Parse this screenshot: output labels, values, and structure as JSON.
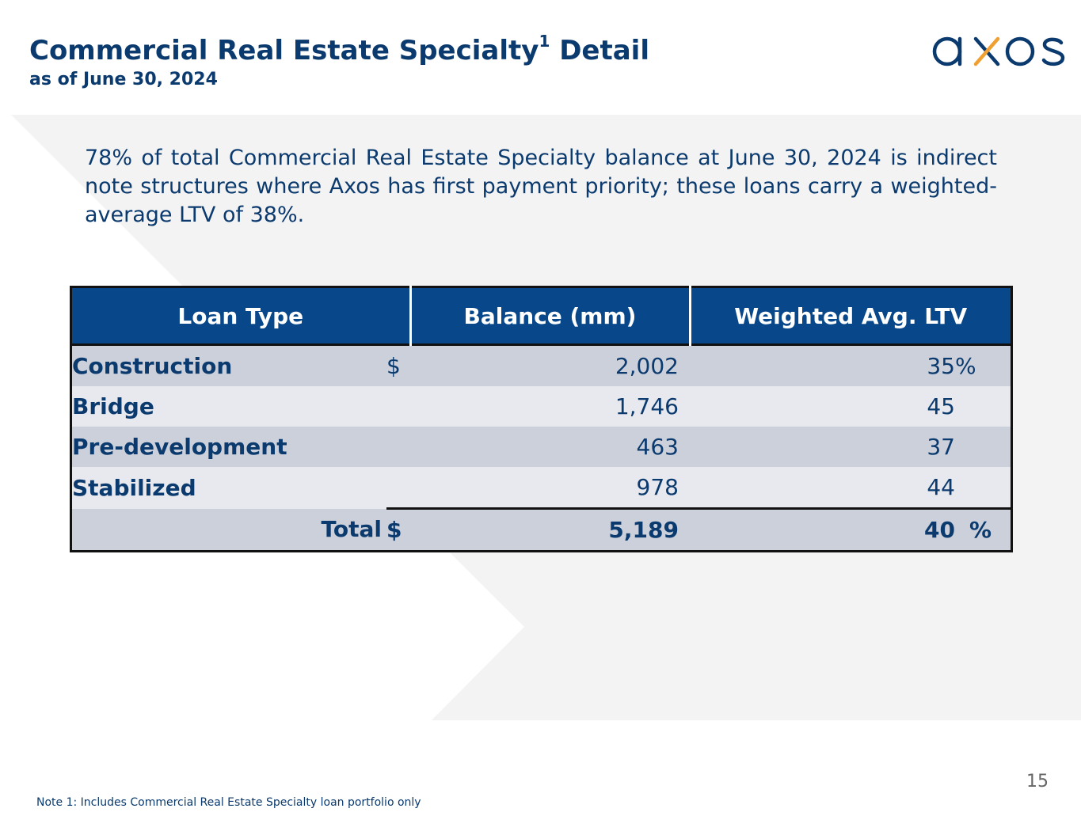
{
  "header": {
    "title": "Commercial Real Estate Specialty",
    "title_sup": "1",
    "title_suffix": " Detail",
    "subtitle": "as of June 30, 2024"
  },
  "logo": {
    "icon": "axos-logo",
    "text": "axos",
    "colors": {
      "primary": "#0b3a6e",
      "accent": "#f0a030"
    }
  },
  "intro_text": "78% of total Commercial Real Estate Specialty balance at June 30, 2024 is indirect note structures where Axos has first payment priority; these loans carry a weighted-average LTV of 38%.",
  "table": {
    "columns": [
      "Loan Type",
      "Balance (mm)",
      "Weighted Avg. LTV"
    ],
    "rows": [
      {
        "type": "Construction",
        "currency": "$",
        "balance": "2,002",
        "ltv": "35",
        "pct": "%"
      },
      {
        "type": "Bridge",
        "currency": "",
        "balance": "1,746",
        "ltv": "45",
        "pct": ""
      },
      {
        "type": "Pre-development",
        "currency": "",
        "balance": "463",
        "ltv": "37",
        "pct": ""
      },
      {
        "type": "Stabilized",
        "currency": "",
        "balance": "978",
        "ltv": "44",
        "pct": ""
      }
    ],
    "total": {
      "label": "Total",
      "currency": "$",
      "balance": "5,189",
      "ltv": "40",
      "pct": "%"
    }
  },
  "page_number": "15",
  "footnote": "Note 1: Includes Commercial Real Estate Specialty loan portfolio only",
  "colors": {
    "header_blue": "#07478a",
    "text_blue": "#0b3a6e",
    "row_dark": "#ccd0da",
    "row_light": "#e8e9ee"
  }
}
